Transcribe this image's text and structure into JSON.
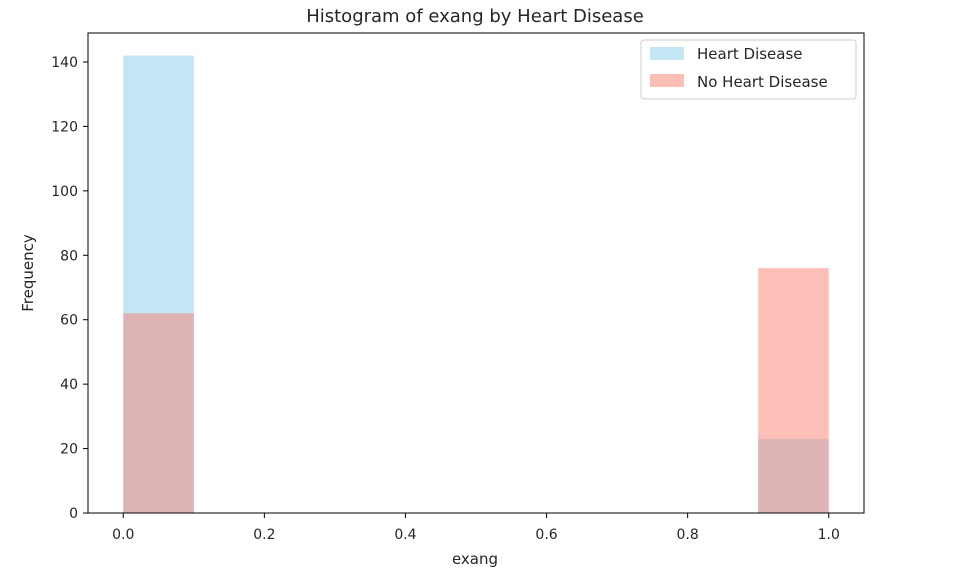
{
  "chart_data": {
    "type": "bar",
    "title": "Histogram of exang by Heart Disease",
    "xlabel": "exang",
    "ylabel": "Frequency",
    "xlim": [
      -0.05,
      1.05
    ],
    "ylim": [
      0,
      149
    ],
    "xticks": [
      0.0,
      0.2,
      0.4,
      0.6,
      0.8,
      1.0
    ],
    "xtick_labels": [
      "0.0",
      "0.2",
      "0.4",
      "0.6",
      "0.8",
      "1.0"
    ],
    "yticks": [
      0,
      20,
      40,
      60,
      80,
      100,
      120,
      140
    ],
    "ytick_labels": [
      "0",
      "20",
      "40",
      "60",
      "80",
      "100",
      "120",
      "140"
    ],
    "grid": false,
    "legend_position": "top-right",
    "bins": [
      {
        "x0": 0.0,
        "x1": 0.1
      },
      {
        "x0": 0.9,
        "x1": 1.0
      }
    ],
    "series": [
      {
        "name": "Heart Disease",
        "values": [
          142,
          23
        ],
        "color": "#87ceeb",
        "opacity": 0.5
      },
      {
        "name": "No Heart Disease",
        "values": [
          62,
          76
        ],
        "color": "#fa8072",
        "opacity": 0.5
      }
    ]
  }
}
